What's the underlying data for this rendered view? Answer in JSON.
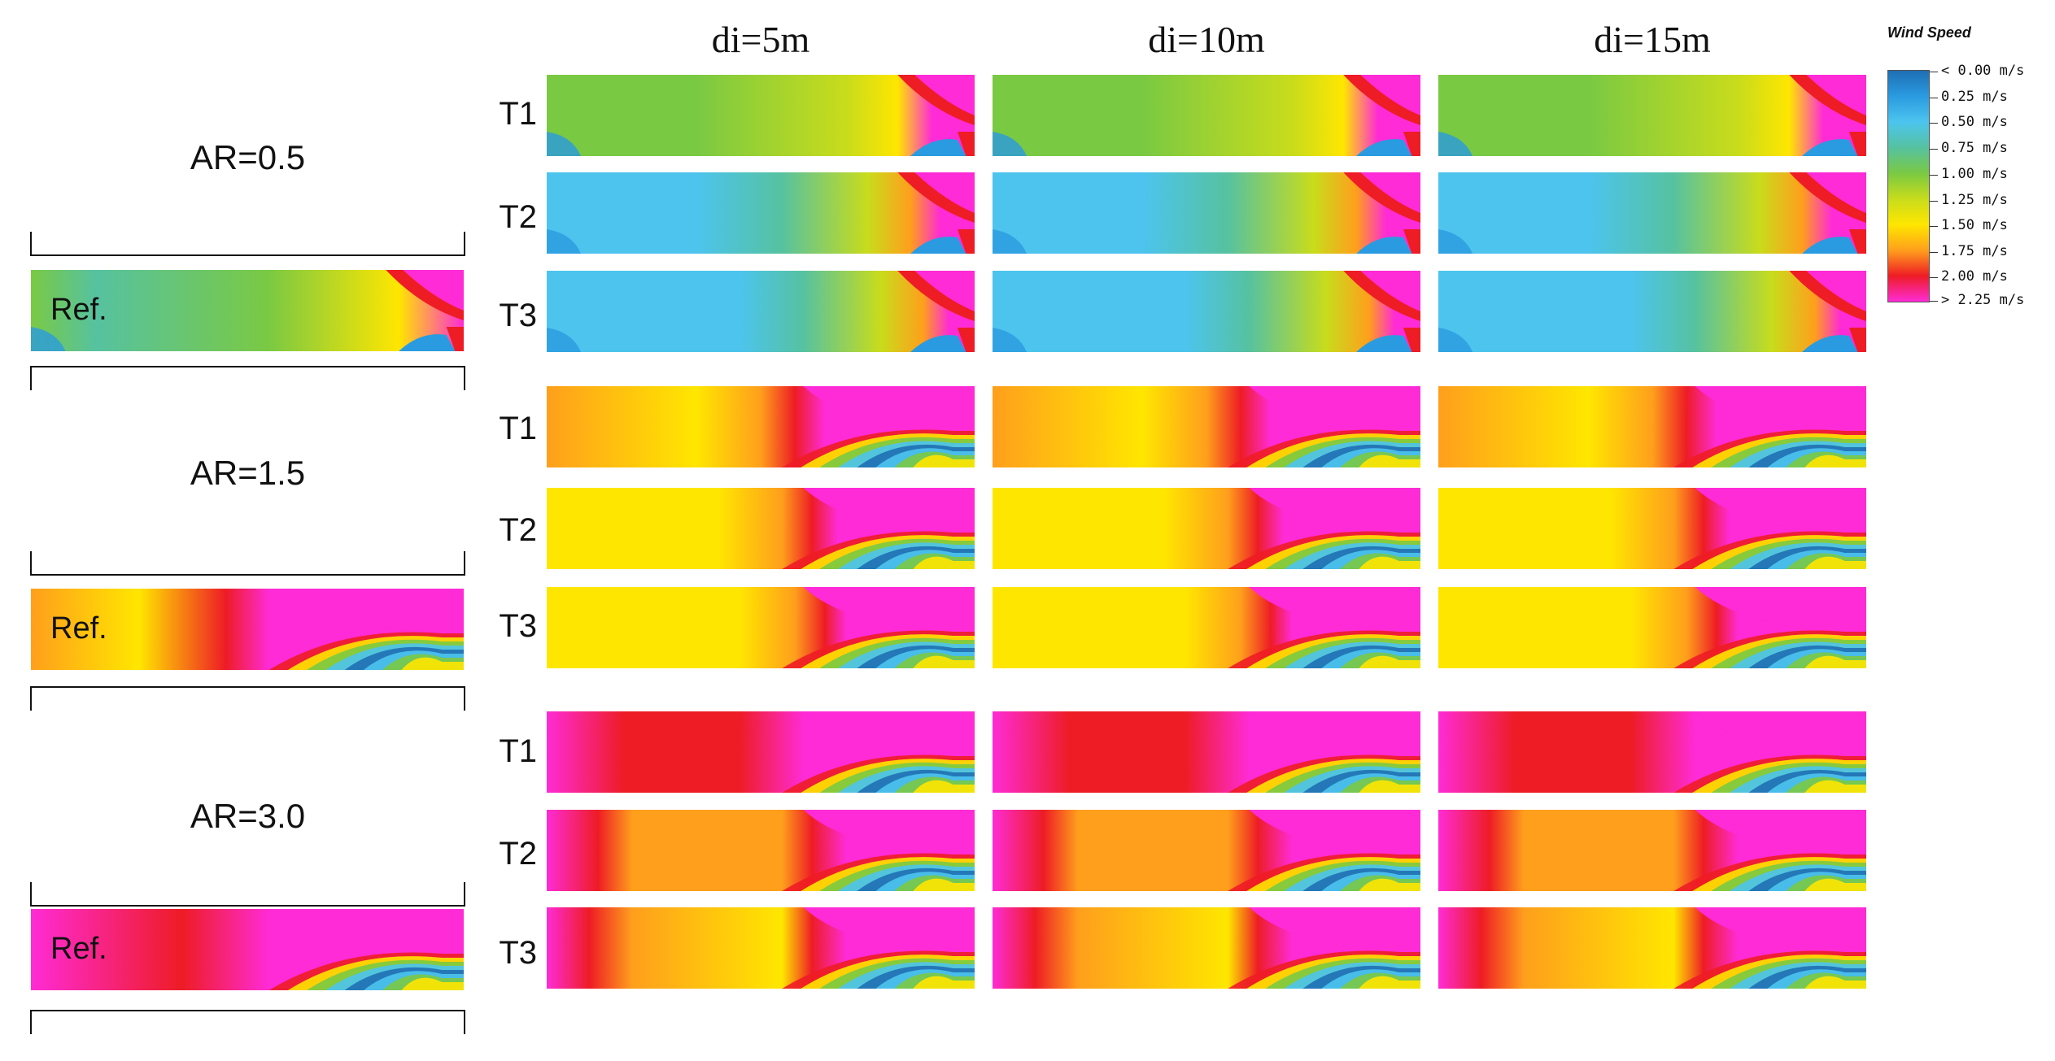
{
  "column_headers": [
    "di=5m",
    "di=10m",
    "di=15m"
  ],
  "row_labels": [
    "T1",
    "T2",
    "T3"
  ],
  "ref_label": "Ref.",
  "groups": [
    {
      "title": "AR=0.5",
      "key": "ar05"
    },
    {
      "title": "AR=1.5",
      "key": "ar15"
    },
    {
      "title": "AR=3.0",
      "key": "ar30"
    }
  ],
  "legend": {
    "title": "Wind Speed",
    "labels": [
      "< 0.00 m/s",
      "0.25  m/s",
      "0.50  m/s",
      "0.75  m/s",
      "1.00  m/s",
      "1.25  m/s",
      "1.50  m/s",
      "1.75  m/s",
      "2.00  m/s",
      "> 2.25 m/s"
    ],
    "colors": [
      "#1f6fb4",
      "#2a9be0",
      "#4cc4ee",
      "#56c2a0",
      "#7ac943",
      "#c8dc1c",
      "#ffe600",
      "#ff9f1c",
      "#ee1c25",
      "#ff2bd6"
    ]
  },
  "chart_data": {
    "type": "heatmap",
    "description_values_unit": "m/s",
    "color_scale_min": 0.0,
    "color_scale_max": 2.25,
    "column_parameter": [
      "di=5m",
      "di=10m",
      "di=15m"
    ],
    "row_parameter": [
      "T1",
      "T2",
      "T3"
    ],
    "group_parameter": [
      "AR=0.5",
      "AR=1.5",
      "AR=3.0"
    ]
  }
}
